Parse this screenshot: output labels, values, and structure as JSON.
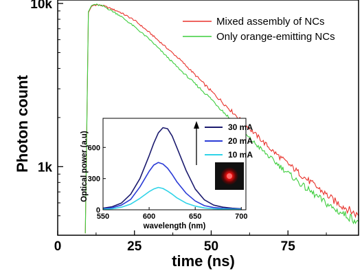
{
  "chart_data": [
    {
      "type": "line",
      "title": "",
      "xlabel": "time (ns)",
      "ylabel": "Photon count",
      "xlim": [
        0,
        98
      ],
      "ylim": [
        380,
        10500
      ],
      "yscale": "log",
      "x_ticks": [
        0,
        25,
        50,
        75
      ],
      "x_tick_labels": [
        "0",
        "25",
        "50",
        "75"
      ],
      "y_ticks": [
        1000,
        10000
      ],
      "y_tick_labels": [
        "1k",
        "10k"
      ],
      "grid": false,
      "legend_position": "top-right",
      "series": [
        {
          "name": "Mixed assembly of NCs",
          "color": "#e8312a",
          "x": [
            9,
            10,
            11,
            12,
            13,
            15,
            20,
            25,
            30,
            40,
            50,
            60,
            70,
            80,
            90,
            98
          ],
          "values": [
            390,
            8800,
            9600,
            9800,
            9800,
            9650,
            8900,
            7900,
            6600,
            4500,
            2900,
            1900,
            1250,
            870,
            620,
            500
          ]
        },
        {
          "name": "Only orange-emitting NCs",
          "color": "#3ccd3c",
          "x": [
            9,
            10,
            11,
            12,
            13,
            15,
            20,
            25,
            30,
            40,
            50,
            60,
            70,
            80,
            90,
            98
          ],
          "values": [
            390,
            8900,
            9700,
            9850,
            9800,
            9600,
            8500,
            7200,
            6000,
            3900,
            2600,
            1650,
            1100,
            760,
            550,
            460
          ]
        }
      ]
    },
    {
      "type": "line",
      "title": "",
      "xlabel": "wavelength (nm)",
      "ylabel": "Optical power (a.u)",
      "xlim": [
        550,
        705
      ],
      "ylim": [
        0,
        880
      ],
      "x_ticks": [
        550,
        600,
        650,
        700
      ],
      "x_tick_labels": [
        "550",
        "600",
        "650",
        "700"
      ],
      "y_ticks": [
        0,
        300,
        600
      ],
      "y_tick_labels": [
        "0",
        "300",
        "600"
      ],
      "grid": false,
      "legend_position": "top-right",
      "x": [
        550,
        560,
        570,
        580,
        590,
        600,
        605,
        610,
        615,
        620,
        625,
        630,
        640,
        650,
        660,
        670,
        680,
        690,
        700
      ],
      "series": [
        {
          "name": "30 mA",
          "color": "#1b1a6e",
          "values": [
            15,
            30,
            65,
            150,
            300,
            520,
            640,
            740,
            790,
            780,
            710,
            600,
            380,
            200,
            95,
            45,
            25,
            15,
            10
          ]
        },
        {
          "name": "20 mA",
          "color": "#2a3bd6",
          "values": [
            10,
            20,
            45,
            100,
            220,
            370,
            430,
            455,
            440,
            400,
            340,
            270,
            160,
            85,
            40,
            22,
            14,
            10,
            8
          ]
        },
        {
          "name": "10 mA",
          "color": "#2fd3e8",
          "values": [
            5,
            10,
            25,
            55,
            110,
            175,
            200,
            215,
            205,
            180,
            150,
            115,
            65,
            35,
            18,
            10,
            7,
            5,
            4
          ]
        }
      ]
    }
  ]
}
